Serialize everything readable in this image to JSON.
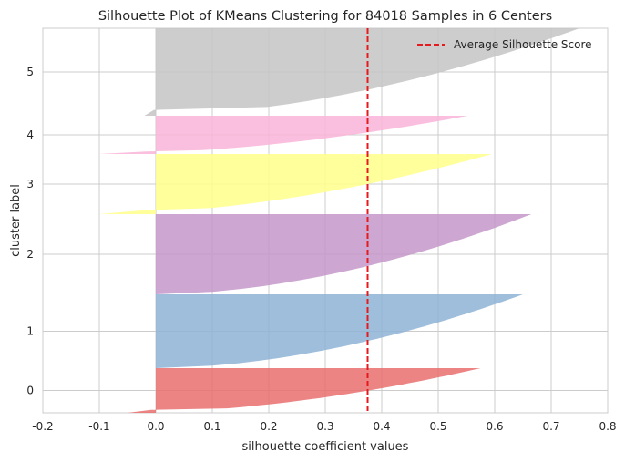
{
  "chart_data": {
    "type": "area",
    "title": "Silhouette Plot of KMeans Clustering for 84018 Samples in 6 Centers",
    "xlabel": "silhouette coefficient values",
    "ylabel": "cluster label",
    "xlim": [
      -0.2,
      0.8
    ],
    "xticks": [
      "-0.2",
      "-0.1",
      "0.0",
      "0.1",
      "0.2",
      "0.3",
      "0.4",
      "0.5",
      "0.6",
      "0.7",
      "0.8"
    ],
    "average_silhouette_score": 0.375,
    "legend": {
      "label": "Average Silhouette Score",
      "position": "top-right"
    },
    "grid": true,
    "clusters": [
      {
        "label": "0",
        "color": "#e96f6f",
        "min": -0.05,
        "max": 0.575
      },
      {
        "label": "1",
        "color": "#8db3d6",
        "min": 0.0,
        "max": 0.65
      },
      {
        "label": "2",
        "color": "#c497c9",
        "min": 0.0,
        "max": 0.665
      },
      {
        "label": "3",
        "color": "#ffff8a",
        "min": -0.1,
        "max": 0.595
      },
      {
        "label": "4",
        "color": "#f9b4d8",
        "min": -0.1,
        "max": 0.552
      },
      {
        "label": "5",
        "color": "#c4c4c4",
        "min": -0.02,
        "max": 0.75
      }
    ]
  }
}
